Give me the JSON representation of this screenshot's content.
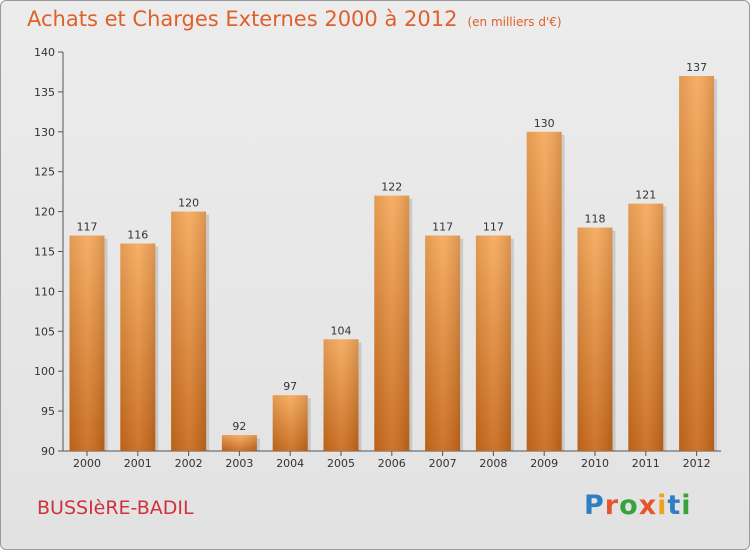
{
  "title": "Achats et Charges Externes 2000 à 2012",
  "subtitle": "(en milliers d'€)",
  "city": "BUSSIèRE-BADIL",
  "logo": {
    "text": "Proxiti",
    "letter_colors": [
      "#2d7fc1",
      "#e8542c",
      "#3aa23a",
      "#e8542c",
      "#f0a020",
      "#2d7fc1",
      "#3aa23a"
    ]
  },
  "colors": {
    "bar_top": "#f6a85a",
    "bar_bottom": "#c9691a",
    "title": "#e0602a",
    "city": "#d0323c"
  },
  "chart_data": {
    "type": "bar",
    "title": "Achats et Charges Externes 2000 à 2012",
    "subtitle": "(en milliers d'€)",
    "categories": [
      "2000",
      "2001",
      "2002",
      "2003",
      "2004",
      "2005",
      "2006",
      "2007",
      "2008",
      "2009",
      "2010",
      "2011",
      "2012"
    ],
    "values": [
      117,
      116,
      120,
      92,
      97,
      104,
      122,
      117,
      117,
      130,
      118,
      121,
      137
    ],
    "ylim": [
      90,
      140
    ],
    "yticks": [
      90,
      95,
      100,
      105,
      110,
      115,
      120,
      125,
      130,
      135,
      140
    ],
    "grid": false,
    "xlabel": "",
    "ylabel": ""
  }
}
